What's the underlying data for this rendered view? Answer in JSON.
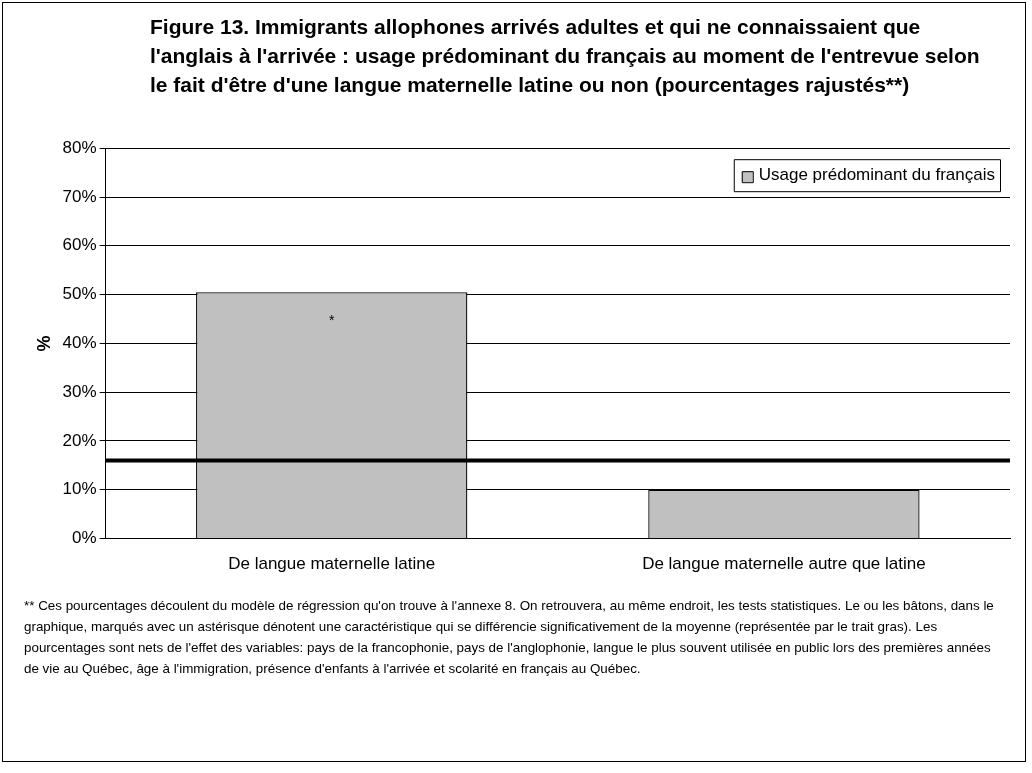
{
  "chart_data": {
    "type": "bar",
    "title": "Figure 13. Immigrants allophones arrivés adultes et qui ne connaissaient que l'anglais à l'arrivée : usage prédominant du français au moment de l'entrevue selon le fait d'être d'une langue maternelle latine ou non (pourcentages rajustés**)",
    "ylabel": "%",
    "categories": [
      "De langue maternelle latine",
      "De langue maternelle autre que latine"
    ],
    "series": [
      {
        "name": "Usage prédominant du français",
        "color": "#c0c0c0",
        "values": [
          50.5,
          10
        ],
        "value_labels": [
          "*",
          null
        ]
      }
    ],
    "ylim": [
      0,
      80
    ],
    "yticks": [
      {
        "value": 0,
        "label": "0%"
      },
      {
        "value": 10,
        "label": "10%"
      },
      {
        "value": 20,
        "label": "20%"
      },
      {
        "value": 30,
        "label": "30%"
      },
      {
        "value": 40,
        "label": "40%"
      },
      {
        "value": 50,
        "label": "50%"
      },
      {
        "value": 60,
        "label": "60%"
      },
      {
        "value": 70,
        "label": "70%"
      },
      {
        "value": 80,
        "label": "80%"
      }
    ],
    "grid": "y",
    "legend": "top right",
    "ref_lines": [
      {
        "axis": "y",
        "value": 16,
        "color": "#000000"
      }
    ],
    "annotations": [
      "** Ces pourcentages découlent du modèle de régression qu'on trouve à l'annexe 8. On retrouvera, au même endroit, les tests statistiques. Le ou les bâtons, dans le graphique, marqués avec un astérisque dénotent une caractéristique qui se différencie significativement de la moyenne (représentée par le trait gras). Les pourcentages sont nets de l'effet des variables: pays de la francophonie, pays de l'anglophonie, langue le plus souvent utilisée en public lors des premières années de vie au Québec, âge à l'immigration, présence d'enfants à l'arrivée et scolarité en français au Québec."
    ]
  }
}
